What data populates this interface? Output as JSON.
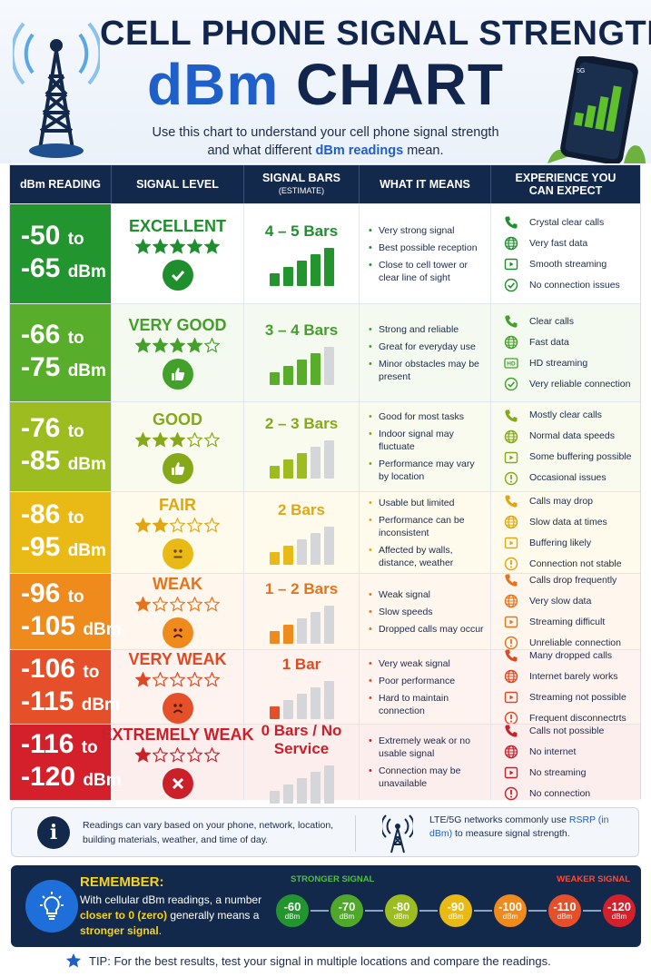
{
  "header": {
    "title_line1": "CELL PHONE SIGNAL STRENGTH",
    "title_line2_a": "dBm",
    "title_line2_b": "CHART",
    "subtitle_a": "Use this chart to understand your cell phone signal strength",
    "subtitle_b": "and what different",
    "subtitle_hl": "dBm readings",
    "subtitle_c": "mean.",
    "phone_status": "5G"
  },
  "columns": {
    "dbm": "dBm READING",
    "level": "SIGNAL LEVEL",
    "bars": "SIGNAL BARS",
    "bars_sub": "(ESTIMATE)",
    "means": "WHAT IT MEANS",
    "exp_a": "EXPERIENCE YOU",
    "exp_b": "CAN EXPECT"
  },
  "rows": [
    {
      "dbm_from": "-50",
      "dbm_to": "-65",
      "to": "to",
      "unit": "dBm",
      "level": "EXCELLENT",
      "stars": 5,
      "badge": "check-icon",
      "bars_label": "4 – 5 Bars",
      "bars_filled": 5,
      "color": "#23952f",
      "light": "#ffffff",
      "text_color": "#1f8f2e",
      "means": [
        "Very strong signal",
        "Best possible reception",
        "Close to cell tower or clear line of sight"
      ],
      "exp": [
        {
          "icon": "phone-icon",
          "text": "Crystal clear calls"
        },
        {
          "icon": "globe-icon",
          "text": "Very fast data"
        },
        {
          "icon": "play-icon",
          "text": "Smooth streaming"
        },
        {
          "icon": "check-circle-icon",
          "text": "No connection issues"
        }
      ]
    },
    {
      "dbm_from": "-66",
      "dbm_to": "-75",
      "to": "to",
      "unit": "dBm",
      "level": "VERY GOOD",
      "stars": 4,
      "badge": "thumbs-up-icon",
      "bars_label": "3 – 4 Bars",
      "bars_filled": 4,
      "color": "#58ad2b",
      "light": "#f4faf0",
      "text_color": "#43a02a",
      "means": [
        "Strong and reliable",
        "Great for everyday use",
        "Minor obstacles may be present"
      ],
      "exp": [
        {
          "icon": "phone-icon",
          "text": "Clear calls"
        },
        {
          "icon": "globe-icon",
          "text": "Fast data"
        },
        {
          "icon": "hd-icon",
          "text": "HD streaming"
        },
        {
          "icon": "check-circle-icon",
          "text": "Very reliable connection"
        }
      ]
    },
    {
      "dbm_from": "-76",
      "dbm_to": "-85",
      "to": "to",
      "unit": "dBm",
      "level": "GOOD",
      "stars": 3,
      "badge": "thumbs-up-icon",
      "bars_label": "2 – 3 Bars",
      "bars_filled": 3,
      "color": "#9cbc1f",
      "light": "#f8fbee",
      "text_color": "#86a919",
      "means": [
        "Good for most tasks",
        "Indoor signal may fluctuate",
        "Performance may vary by location"
      ],
      "exp": [
        {
          "icon": "phone-icon",
          "text": "Mostly clear calls"
        },
        {
          "icon": "globe-icon",
          "text": "Normal data speeds"
        },
        {
          "icon": "play-icon",
          "text": "Some buffering possible"
        },
        {
          "icon": "warning-icon",
          "text": "Occasional issues"
        }
      ]
    },
    {
      "dbm_from": "-86",
      "dbm_to": "-95",
      "to": "to",
      "unit": "dBm",
      "level": "FAIR",
      "stars": 2,
      "badge": "neutral-face-icon",
      "bars_label": "2 Bars",
      "bars_filled": 2,
      "color": "#e9ba16",
      "light": "#fffbec",
      "text_color": "#e0a713",
      "means": [
        "Usable but limited",
        "Performance can be inconsistent",
        "Affected by walls, distance, weather"
      ],
      "exp": [
        {
          "icon": "phone-icon",
          "text": "Calls may drop"
        },
        {
          "icon": "globe-icon",
          "text": "Slow data at times"
        },
        {
          "icon": "play-icon",
          "text": "Buffering likely"
        },
        {
          "icon": "warning-icon",
          "text": "Connection not stable"
        }
      ]
    },
    {
      "dbm_from": "-96",
      "dbm_to": "-105",
      "to": "to",
      "unit": "dBm",
      "level": "WEAK",
      "stars": 1,
      "badge": "sad-face-icon",
      "bars_label": "1 – 2 Bars",
      "bars_filled": 2,
      "color": "#ef8a1d",
      "light": "#fff7ee",
      "text_color": "#e6731a",
      "means": [
        "Weak signal",
        "Slow speeds",
        "Dropped calls may occur"
      ],
      "exp": [
        {
          "icon": "phone-icon",
          "text": "Calls drop frequently"
        },
        {
          "icon": "globe-icon",
          "text": "Very slow data"
        },
        {
          "icon": "play-icon",
          "text": "Streaming difficult"
        },
        {
          "icon": "warning-icon",
          "text": "Unreliable connection"
        }
      ]
    },
    {
      "dbm_from": "-106",
      "dbm_to": "-115",
      "to": "to",
      "unit": "dBm",
      "level": "VERY WEAK",
      "stars": 1,
      "badge": "sad-face-icon",
      "bars_label": "1 Bar",
      "bars_filled": 1,
      "color": "#e5502a",
      "light": "#fff3ef",
      "text_color": "#de4a23",
      "means": [
        "Very weak signal",
        "Poor performance",
        "Hard to maintain connection"
      ],
      "exp": [
        {
          "icon": "phone-icon",
          "text": "Many dropped calls"
        },
        {
          "icon": "globe-icon",
          "text": "Internet barely works"
        },
        {
          "icon": "play-icon",
          "text": "Streaming not possible"
        },
        {
          "icon": "warning-icon",
          "text": "Frequent disconnectrts"
        }
      ]
    },
    {
      "dbm_from": "-116",
      "dbm_to": "-120",
      "to": "to",
      "unit": "dBm",
      "level": "EXTREMELY WEAK",
      "stars": 1,
      "badge": "x-icon",
      "bars_label": "0 Bars / No Service",
      "bars_filled": 0,
      "color": "#d4202a",
      "light": "#fdeeee",
      "text_color": "#c9202a",
      "means": [
        "Extremely weak or no usable signal",
        "Connection may be unavailable"
      ],
      "exp": [
        {
          "icon": "phone-icon",
          "text": "Calls not possible"
        },
        {
          "icon": "globe-icon",
          "text": "No internet"
        },
        {
          "icon": "play-icon",
          "text": "No streaming"
        },
        {
          "icon": "warning-icon",
          "text": "No connection"
        }
      ]
    }
  ],
  "info": {
    "left": "Readings can vary based on your phone, network, location, building materials, weather, and time of day.",
    "right_a": "LTE/5G networks commonly use",
    "right_hl": "RSRP (in dBm)",
    "right_b": "to measure signal strength."
  },
  "remember": {
    "title": "REMEMBER:",
    "line_a": "With cellular dBm readings, a number",
    "hl1": "closer to 0 (zero)",
    "line_b": "generally means a",
    "hl2": "stronger signal",
    "end": ".",
    "stronger_label": "STRONGER SIGNAL",
    "weaker_label": "WEAKER SIGNAL",
    "scale": [
      {
        "v": "-60",
        "u": "dBm",
        "color": "#23952f"
      },
      {
        "v": "-70",
        "u": "dBm",
        "color": "#4fa82a"
      },
      {
        "v": "-80",
        "u": "dBm",
        "color": "#9cbc1f"
      },
      {
        "v": "-90",
        "u": "dBm",
        "color": "#e9ba16"
      },
      {
        "v": "-100",
        "u": "dBm",
        "color": "#ef8a1d"
      },
      {
        "v": "-110",
        "u": "dBm",
        "color": "#e5502a"
      },
      {
        "v": "-120",
        "u": "dBm",
        "color": "#d4202a"
      }
    ]
  },
  "tip": "TIP: For the best results, test your signal in multiple locations and compare the readings."
}
